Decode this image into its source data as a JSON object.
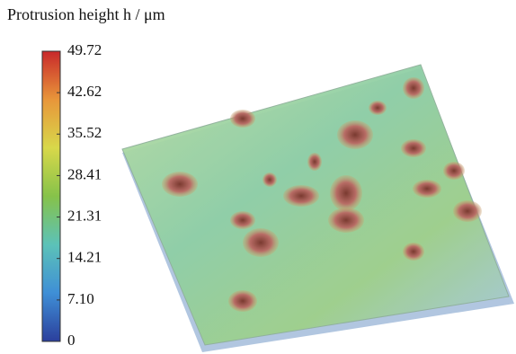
{
  "chart_data": {
    "type": "surface",
    "title": "Protrusion height h / μm",
    "zlim": [
      0,
      49.72
    ],
    "zticks": [
      0,
      {
        "value": 7.1,
        "label": "7.10"
      },
      14.21,
      21.31,
      28.41,
      35.52,
      42.62,
      49.72
    ],
    "colormap": [
      "#2b3f9c",
      "#3f8fd6",
      "#5cc2b8",
      "#86c24a",
      "#d8d84a",
      "#e8963a",
      "#c8282a"
    ]
  }
}
